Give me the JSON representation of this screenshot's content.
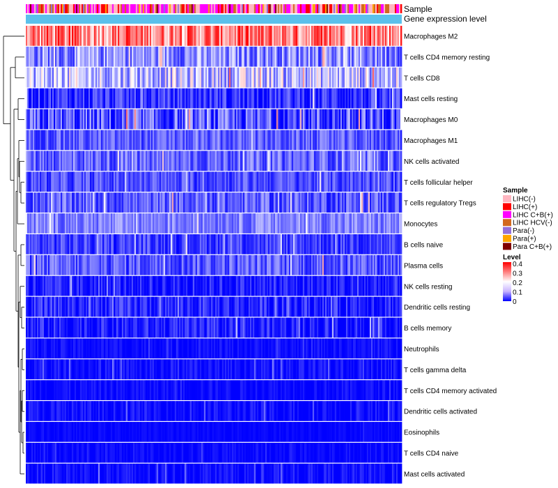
{
  "chart_data": {
    "type": "heatmap",
    "title": "",
    "annotations": [
      {
        "name": "Sample"
      },
      {
        "name": "Gene expression level"
      }
    ],
    "rows": [
      {
        "label": "Macrophages M2",
        "mean": 0.3,
        "spread": 0.1
      },
      {
        "label": "T cells CD4 memory resting",
        "mean": 0.11,
        "spread": 0.08
      },
      {
        "label": "T cells CD8",
        "mean": 0.15,
        "spread": 0.09
      },
      {
        "label": "Mast cells resting",
        "mean": 0.04,
        "spread": 0.06
      },
      {
        "label": "Macrophages M0",
        "mean": 0.05,
        "spread": 0.1
      },
      {
        "label": "Macrophages M1",
        "mean": 0.07,
        "spread": 0.05
      },
      {
        "label": "NK cells activated",
        "mean": 0.08,
        "spread": 0.06
      },
      {
        "label": "T cells follicular helper",
        "mean": 0.06,
        "spread": 0.05
      },
      {
        "label": "T cells regulatory  Tregs",
        "mean": 0.07,
        "spread": 0.06
      },
      {
        "label": "Monocytes",
        "mean": 0.1,
        "spread": 0.05
      },
      {
        "label": "B cells naive",
        "mean": 0.05,
        "spread": 0.05
      },
      {
        "label": "Plasma cells",
        "mean": 0.07,
        "spread": 0.06
      },
      {
        "label": "NK cells resting",
        "mean": 0.02,
        "spread": 0.05
      },
      {
        "label": "Dendritic cells resting",
        "mean": 0.03,
        "spread": 0.05
      },
      {
        "label": "B cells memory",
        "mean": 0.02,
        "spread": 0.05
      },
      {
        "label": "Neutrophils",
        "mean": 0.01,
        "spread": 0.02
      },
      {
        "label": "T cells gamma delta",
        "mean": 0.01,
        "spread": 0.03
      },
      {
        "label": "T cells CD4 memory activated",
        "mean": 0.01,
        "spread": 0.02
      },
      {
        "label": "Dendritic cells activated",
        "mean": 0.01,
        "spread": 0.03
      },
      {
        "label": "Eosinophils",
        "mean": 0.005,
        "spread": 0.01
      },
      {
        "label": "T cells CD4 naive",
        "mean": 0.005,
        "spread": 0.02
      },
      {
        "label": "Mast cells activated",
        "mean": 0.01,
        "spread": 0.03
      }
    ],
    "n_samples": 270,
    "value_range": [
      0,
      0.4
    ],
    "colormap": [
      "#0000ff",
      "#ffffff",
      "#ff0000"
    ],
    "legends": {
      "sample": {
        "title": "Sample",
        "items": [
          {
            "label": "LIHC(-)",
            "color": "#ffb6c1"
          },
          {
            "label": "LIHC(+)",
            "color": "#ff0000"
          },
          {
            "label": "LIHC C+B(+)",
            "color": "#ff00ff"
          },
          {
            "label": "LIHC HCV(-)",
            "color": "#d2691e"
          },
          {
            "label": "Para(-)",
            "color": "#9370db"
          },
          {
            "label": "Para(+)",
            "color": "#ffa500"
          },
          {
            "label": "Para C+B(+)",
            "color": "#800000"
          }
        ]
      },
      "level": {
        "title": "Level",
        "ticks": [
          "0.4",
          "0.3",
          "0.2",
          "0.1",
          "0"
        ]
      }
    },
    "expression_bar_color": "#5bc0eb"
  }
}
